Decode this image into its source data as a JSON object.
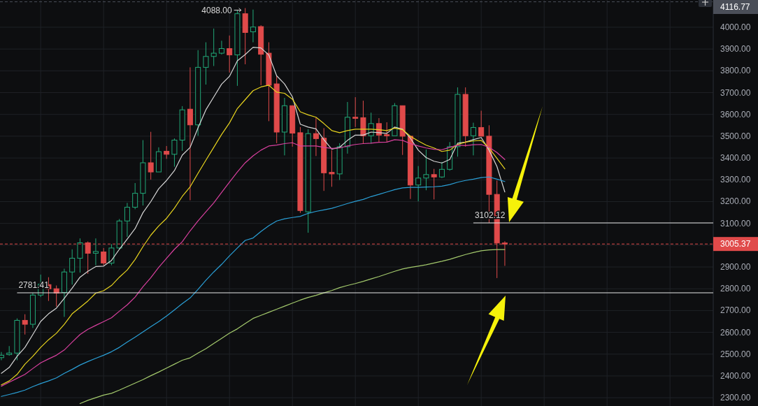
{
  "chart_data": {
    "type": "candlestick",
    "tick_labels": "y",
    "grid": true,
    "categories": [
      null,
      null,
      null,
      null,
      null,
      null,
      null,
      null,
      null,
      null,
      null,
      null,
      null,
      null,
      null,
      null,
      null,
      null,
      null,
      null,
      null,
      null,
      null,
      null,
      null,
      null,
      null,
      null,
      null,
      null,
      null,
      null,
      null,
      null,
      null,
      null,
      null,
      null,
      null,
      null,
      null,
      null,
      null,
      null,
      null,
      null,
      null,
      null,
      null,
      null,
      null,
      null,
      null,
      null,
      null,
      null,
      null,
      null,
      null,
      null,
      null,
      null,
      null,
      null,
      null
    ],
    "ohlc": [
      [
        2484,
        2510,
        2472,
        2495
      ],
      [
        2498,
        2537,
        2493,
        2505
      ],
      [
        2505,
        2664,
        2472,
        2655
      ],
      [
        2655,
        2683,
        2590,
        2637
      ],
      [
        2637,
        2781.41,
        2620,
        2771
      ],
      [
        2771,
        2865,
        2762,
        2821
      ],
      [
        2819,
        2853,
        2744,
        2800
      ],
      [
        2800,
        2815,
        2718,
        2780
      ],
      [
        2783,
        2892,
        2671,
        2877
      ],
      [
        2877,
        2981,
        2819,
        2940
      ],
      [
        2940,
        3031,
        2874,
        3011
      ],
      [
        3011,
        3017,
        2868,
        2963
      ],
      [
        2963,
        3031,
        2908,
        2971
      ],
      [
        2969,
        2987,
        2908,
        2918
      ],
      [
        2918,
        3005,
        2908,
        2987
      ],
      [
        2987,
        3120,
        2983,
        3111
      ],
      [
        3111,
        3194,
        3038,
        3174
      ],
      [
        3174,
        3285,
        3165,
        3238
      ],
      [
        3238,
        3482,
        3182,
        3378
      ],
      [
        3378,
        3520,
        3301,
        3336
      ],
      [
        3336,
        3449,
        3336,
        3429
      ],
      [
        3431,
        3455,
        3396,
        3417
      ],
      [
        3417,
        3490,
        3360,
        3482
      ],
      [
        3482,
        3638,
        3433,
        3621
      ],
      [
        3624,
        3816,
        3206,
        3552
      ],
      [
        3552,
        3895,
        3502,
        3816
      ],
      [
        3816,
        3931,
        3737,
        3866
      ],
      [
        3866,
        3994,
        3822,
        3881
      ],
      [
        3881,
        3938,
        3875,
        3902
      ],
      [
        3902,
        3962,
        3792,
        3873
      ],
      [
        3873,
        4080,
        3731,
        4062
      ],
      [
        4062,
        4088,
        3830,
        3976
      ],
      [
        3979,
        4081,
        3931,
        4001
      ],
      [
        4003,
        4009,
        3734,
        3876
      ],
      [
        3881,
        3931,
        3569,
        3734
      ],
      [
        3740,
        3777,
        3468,
        3519
      ],
      [
        3519,
        3676,
        3412,
        3640
      ],
      [
        3640,
        3640,
        3452,
        3514
      ],
      [
        3516,
        3542,
        3148,
        3159
      ],
      [
        3153,
        3532,
        3057,
        3512
      ],
      [
        3512,
        3585,
        3409,
        3489
      ],
      [
        3491,
        3537,
        3249,
        3332
      ],
      [
        3334,
        3436,
        3268,
        3327
      ],
      [
        3327,
        3468,
        3299,
        3452
      ],
      [
        3452,
        3657,
        3420,
        3587
      ],
      [
        3587,
        3679,
        3542,
        3582
      ],
      [
        3585,
        3663,
        3466,
        3502
      ],
      [
        3502,
        3608,
        3466,
        3558
      ],
      [
        3558,
        3583,
        3473,
        3505
      ],
      [
        3507,
        3564,
        3473,
        3502
      ],
      [
        3502,
        3652,
        3502,
        3640
      ],
      [
        3640,
        3640,
        3414,
        3500
      ],
      [
        3500,
        3500,
        3212,
        3276
      ],
      [
        3276,
        3363,
        3201,
        3308
      ],
      [
        3308,
        3439,
        3252,
        3324
      ],
      [
        3324,
        3350,
        3210,
        3313
      ],
      [
        3313,
        3382,
        3308,
        3348
      ],
      [
        3348,
        3473,
        3342,
        3452
      ],
      [
        3452,
        3724,
        3406,
        3692
      ],
      [
        3692,
        3724,
        3452,
        3502
      ],
      [
        3502,
        3562,
        3412,
        3540
      ],
      [
        3540,
        3617,
        3500,
        3500
      ],
      [
        3500,
        3550,
        3102.12,
        3233
      ],
      [
        3233,
        3297,
        2849,
        3010
      ],
      [
        3010,
        3018,
        2905,
        3005.37
      ]
    ],
    "series": [
      {
        "type": "line",
        "color": "#d6d6d6",
        "values": [
          2412,
          2439,
          2490,
          2531,
          2590,
          2650,
          2685,
          2711,
          2756,
          2803,
          2853,
          2880,
          2902,
          2904,
          2930,
          2981,
          3028,
          3076,
          3149,
          3200,
          3259,
          3297,
          3342,
          3413,
          3449,
          3538,
          3621,
          3680,
          3739,
          3775,
          3846,
          3875,
          3908,
          3905,
          3873,
          3777,
          3740,
          3681,
          3555,
          3542,
          3534,
          3484,
          3441,
          3449,
          3481,
          3505,
          3505,
          3519,
          3516,
          3513,
          3542,
          3532,
          3491,
          3436,
          3402,
          3385,
          3377,
          3393,
          3468,
          3473,
          3484,
          3494,
          3436,
          3361,
          3244
        ]
      },
      {
        "type": "line",
        "color": "#e8d41e",
        "values": [
          2359,
          2377,
          2407,
          2454,
          2490,
          2531,
          2566,
          2596,
          2637,
          2685,
          2714,
          2744,
          2780,
          2791,
          2815,
          2853,
          2886,
          2934,
          2993,
          3046,
          3088,
          3123,
          3170,
          3224,
          3268,
          3330,
          3390,
          3449,
          3508,
          3561,
          3627,
          3668,
          3709,
          3726,
          3734,
          3702,
          3697,
          3670,
          3612,
          3598,
          3587,
          3558,
          3526,
          3516,
          3526,
          3532,
          3532,
          3532,
          3530,
          3526,
          3537,
          3530,
          3500,
          3478,
          3459,
          3446,
          3430,
          3436,
          3462,
          3473,
          3478,
          3481,
          3446,
          3398,
          3350
        ]
      },
      {
        "type": "line",
        "color": "#d9409f",
        "values": [
          2353,
          2371,
          2389,
          2407,
          2434,
          2460,
          2478,
          2495,
          2519,
          2555,
          2590,
          2614,
          2632,
          2649,
          2667,
          2697,
          2726,
          2762,
          2809,
          2851,
          2898,
          2940,
          2981,
          3016,
          3066,
          3111,
          3153,
          3194,
          3242,
          3289,
          3336,
          3378,
          3410,
          3436,
          3455,
          3459,
          3466,
          3470,
          3455,
          3455,
          3455,
          3449,
          3444,
          3446,
          3455,
          3462,
          3466,
          3468,
          3472,
          3473,
          3484,
          3481,
          3466,
          3455,
          3446,
          3440,
          3438,
          3449,
          3459,
          3457,
          3461,
          3462,
          3449,
          3425,
          3393
        ]
      },
      {
        "type": "line",
        "color": "#2a9fd6",
        "values": [
          2306,
          2315,
          2324,
          2335,
          2351,
          2365,
          2377,
          2391,
          2412,
          2430,
          2450,
          2466,
          2481,
          2495,
          2511,
          2531,
          2555,
          2578,
          2602,
          2626,
          2649,
          2675,
          2703,
          2732,
          2758,
          2797,
          2839,
          2877,
          2912,
          2951,
          2987,
          3022,
          3033,
          3063,
          3089,
          3111,
          3121,
          3127,
          3132,
          3146,
          3155,
          3162,
          3169,
          3180,
          3191,
          3201,
          3210,
          3223,
          3233,
          3244,
          3255,
          3263,
          3265,
          3265,
          3267,
          3268,
          3271,
          3278,
          3289,
          3297,
          3303,
          3310,
          3313,
          3303,
          3292
        ]
      },
      {
        "type": "line",
        "color": "#a3c96c",
        "values": [
          null,
          null,
          null,
          null,
          null,
          null,
          null,
          null,
          null,
          null,
          2273,
          2288,
          2300,
          2312,
          2320,
          2335,
          2351,
          2367,
          2383,
          2401,
          2418,
          2436,
          2454,
          2472,
          2483,
          2505,
          2525,
          2549,
          2572,
          2596,
          2616,
          2640,
          2664,
          2678,
          2692,
          2706,
          2720,
          2734,
          2748,
          2760,
          2770,
          2781,
          2792,
          2805,
          2815,
          2824,
          2834,
          2845,
          2856,
          2868,
          2880,
          2891,
          2898,
          2904,
          2910,
          2918,
          2926,
          2935,
          2946,
          2957,
          2966,
          2974,
          2978,
          2980,
          2980
        ]
      }
    ],
    "ylim": [
      2262,
      4125
    ],
    "yticks": [
      {
        "value": 2300,
        "label": "2300.00"
      },
      {
        "value": 2400,
        "label": "2400.00"
      },
      {
        "value": 2500,
        "label": "2500.00"
      },
      {
        "value": 2600,
        "label": "2600.00"
      },
      {
        "value": 2700,
        "label": "2700.00"
      },
      {
        "value": 2800,
        "label": "2800.00"
      },
      {
        "value": 2900,
        "label": "2900.00"
      },
      {
        "value": 3000,
        "label": null
      },
      {
        "value": 3100,
        "label": "3100.00"
      },
      {
        "value": 3200,
        "label": "3200.00"
      },
      {
        "value": 3300,
        "label": "3300.00"
      },
      {
        "value": 3400,
        "label": "3400.00"
      },
      {
        "value": 3500,
        "label": "3500.00"
      },
      {
        "value": 3600,
        "label": "3600.00"
      },
      {
        "value": 3700,
        "label": "3700.00"
      },
      {
        "value": 3800,
        "label": "3800.00"
      },
      {
        "value": 3900,
        "label": "3900.00"
      },
      {
        "value": 4000,
        "label": "4000.00"
      }
    ],
    "ref_lines": [
      {
        "axis": "y",
        "value": 3102.12,
        "label": "3102.12",
        "color": "#e6e6e6",
        "line_style": "solid"
      },
      {
        "axis": "y",
        "value": 2781.41,
        "label": "2781.41",
        "color": "#e6e6e6",
        "line_style": "solid"
      },
      {
        "axis": "y",
        "value": 3005.37,
        "label": "3005.37",
        "color": "#e04a4a",
        "line_style": "dashed"
      },
      {
        "axis": "y",
        "value": 4116.77,
        "label": "4116.77",
        "color": "#4a4e58",
        "line_style": "dashed"
      }
    ],
    "annotations": [
      "4088.00"
    ]
  }
}
